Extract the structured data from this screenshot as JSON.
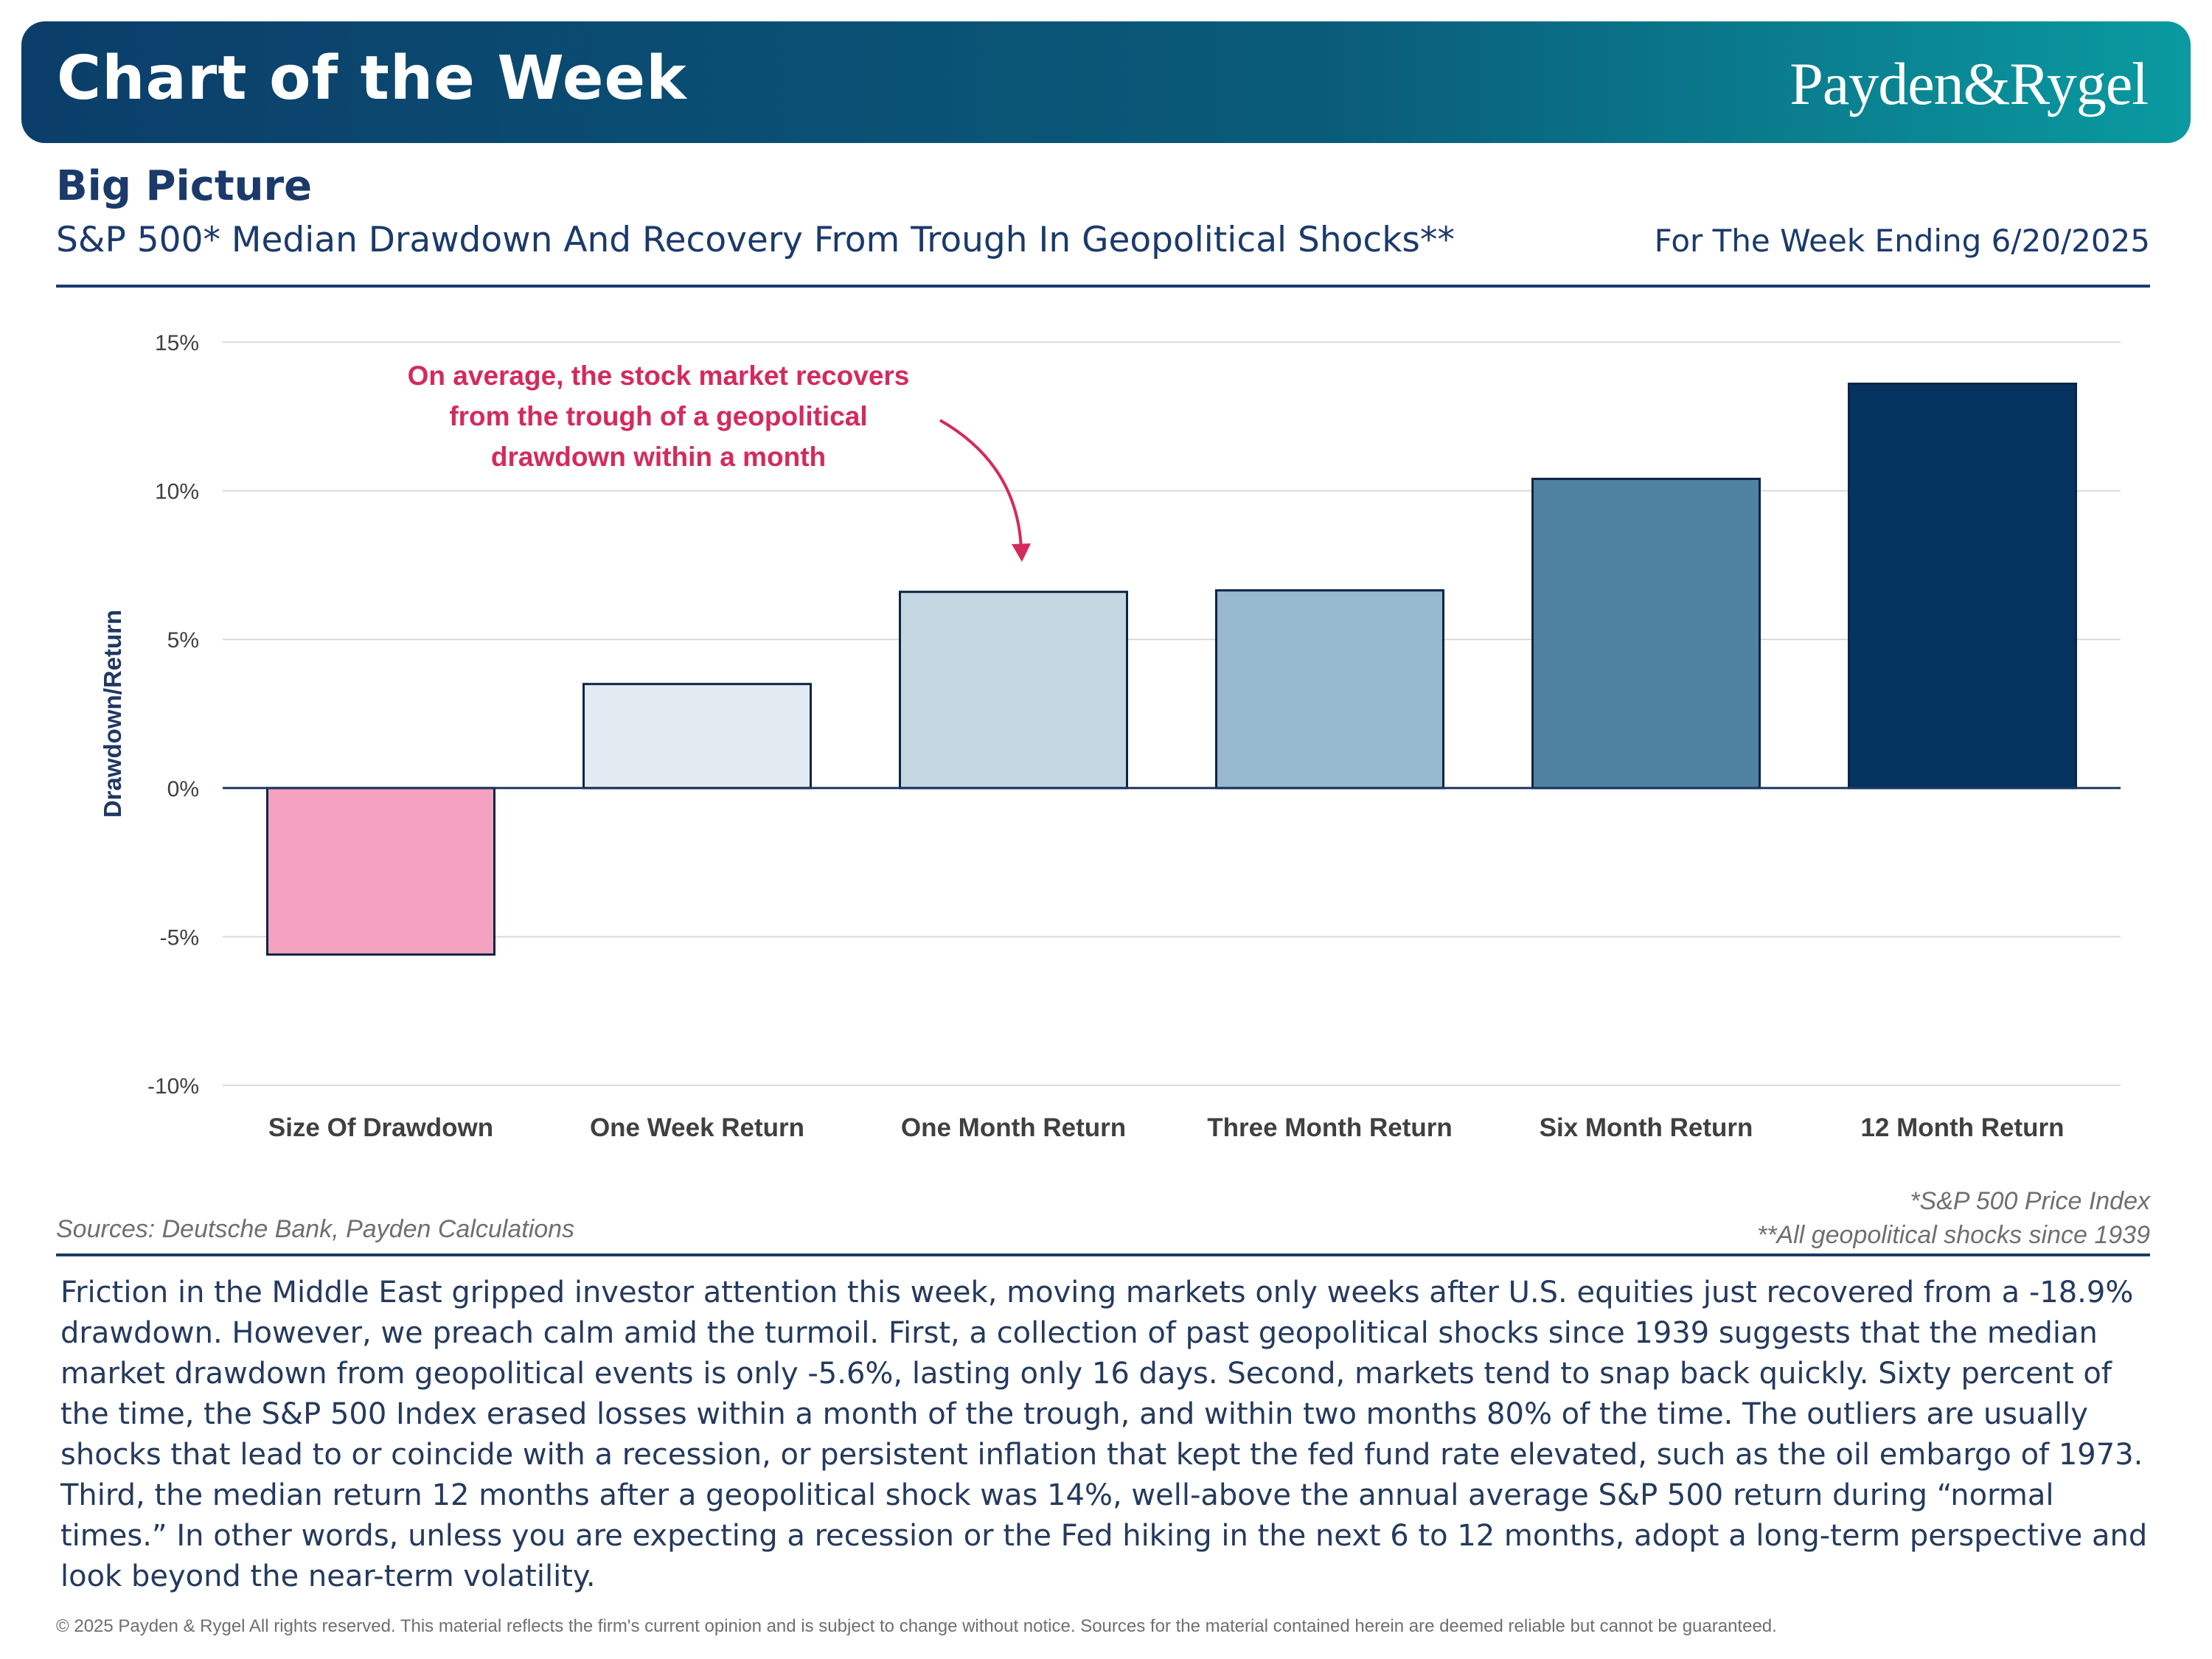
{
  "header": {
    "title": "Chart of the Week",
    "brand": "Payden&Rygel",
    "section": "Big Picture",
    "subtitle": "S&P 500* Median Drawdown And Recovery From Trough In Geopolitical Shocks**",
    "week": "For The Week Ending 6/20/2025",
    "brand_color": "#0b3e6a"
  },
  "chart_data": {
    "type": "bar",
    "categories": [
      "Size Of Drawdown",
      "One Week Return",
      "One Month Return",
      "Three Month Return",
      "Six Month Return",
      "12 Month Return"
    ],
    "values": [
      -5.6,
      3.5,
      6.6,
      6.65,
      10.4,
      13.6
    ],
    "colors": [
      "#f4a2bf",
      "#e3ebf2",
      "#c3d7e3",
      "#96b9cd",
      "#4e82a0",
      "#05335f"
    ],
    "ylabel": "Drawdown/Return",
    "ylim": [
      -10,
      15
    ],
    "yticks": [
      15,
      10,
      5,
      0,
      -5,
      -10
    ],
    "ytick_labels": [
      "15%",
      "10%",
      "5%",
      "0%",
      "-5%",
      "-10%"
    ],
    "grid": true,
    "annotation": {
      "lines": [
        "On average, the stock market recovers",
        "from the trough of a geopolitical",
        "drawdown within a month"
      ],
      "color": "#d42a5e"
    }
  },
  "notes": {
    "sources": "Sources: Deutsche Bank, Payden Calculations",
    "footnote1": "*S&P 500 Price Index",
    "footnote2": "**All geopolitical shocks since 1939"
  },
  "commentary": "Friction in the Middle East gripped investor attention this week, moving markets only weeks after U.S. equities just recovered from a -18.9% drawdown. However, we preach calm amid the turmoil. First, a collection of past geopolitical shocks since 1939 suggests that the median market drawdown from geopolitical events is only -5.6%, lasting only 16 days. Second, markets tend to snap back quickly. Sixty percent of the time, the S&P 500 Index erased losses within a month of the trough, and within two months 80% of the time. The outliers are usually shocks that lead to or coincide with a recession, or persistent inflation that kept the fed fund rate elevated, such as the oil embargo of 1973. Third, the median return 12 months after a geopolitical shock was 14%, well-above the annual average S&P 500 return during “normal times.” In other words, unless you are expecting a recession or the Fed hiking in the next 6 to 12 months, adopt a long-term perspective and look beyond the near-term volatility.",
  "footer": "© 2025 Payden & Rygel All rights reserved. This material reflects the firm's current opinion and is subject to change without notice. Sources for the material contained herein are deemed reliable but cannot be guaranteed."
}
